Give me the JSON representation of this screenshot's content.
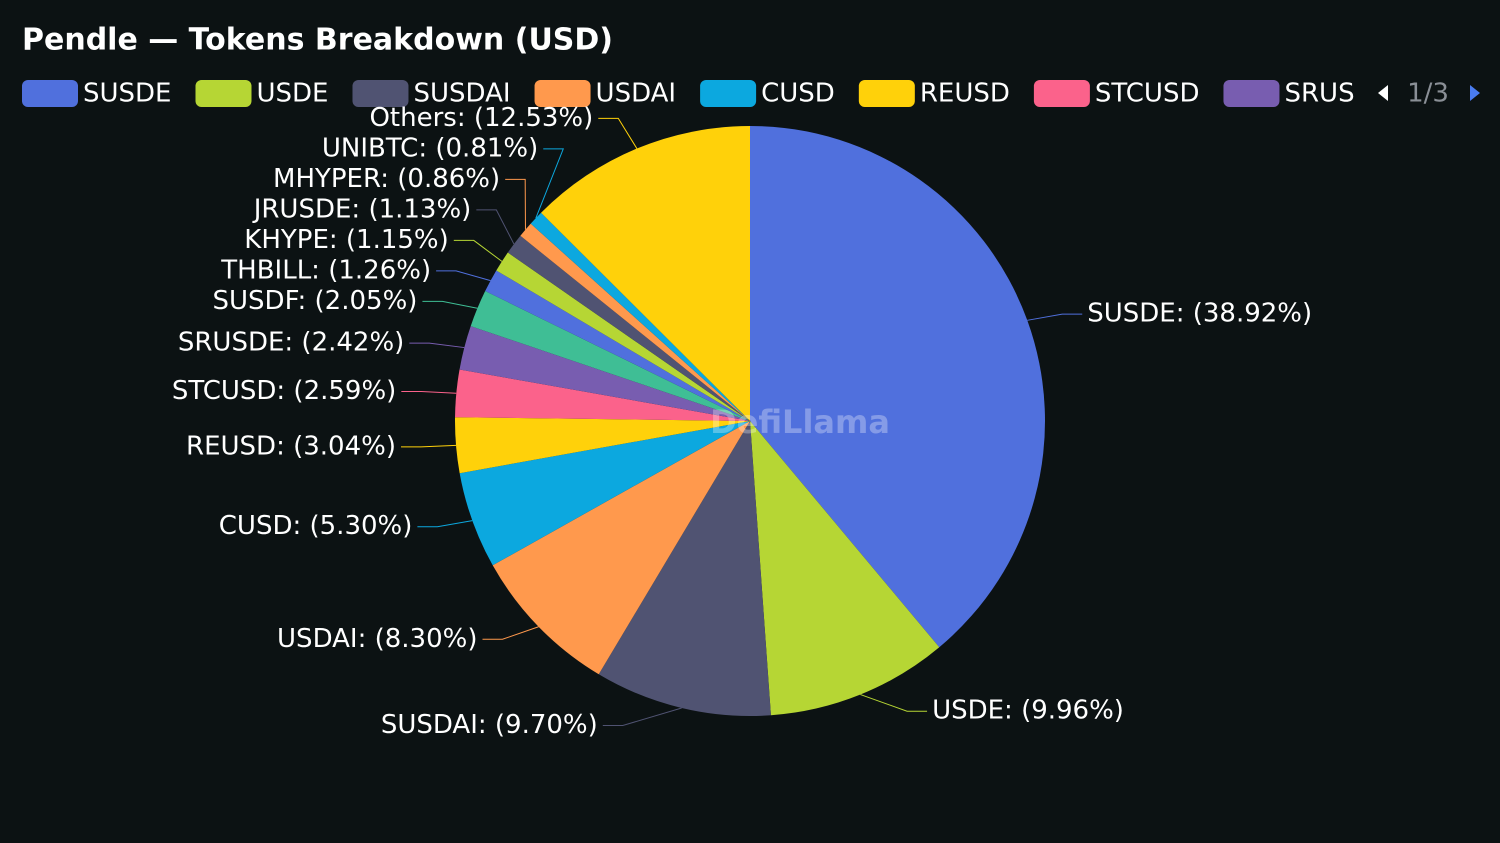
{
  "chart_data": {
    "type": "pie",
    "title": "Pendle — Tokens Breakdown (USD)",
    "categories": [
      "SUSDE",
      "USDE",
      "SUSDAI",
      "USDAI",
      "CUSD",
      "REUSD",
      "STCUSD",
      "SRUSDE",
      "SUSDF",
      "THBILL",
      "KHYPE",
      "JRUSDE",
      "MHYPER",
      "UNIBTC",
      "Others"
    ],
    "values": [
      38.92,
      9.96,
      9.7,
      8.3,
      5.3,
      3.04,
      2.59,
      2.42,
      2.05,
      1.26,
      1.15,
      1.13,
      0.86,
      0.81,
      12.53
    ],
    "value_labels": [
      "SUSDE: (38.92%)",
      "USDE: (9.96%)",
      "SUSDAI: (9.70%)",
      "USDAI: (8.30%)",
      "CUSD: (5.30%)",
      "REUSD: (3.04%)",
      "STCUSD: (2.59%)",
      "SRUSDE: (2.42%)",
      "SUSDF: (2.05%)",
      "THBILL: (1.26%)",
      "KHYPE: (1.15%)",
      "JRUSDE: (1.13%)",
      "MHYPER: (0.86%)",
      "UNIBTC: (0.81%)",
      "Others: (12.53%)"
    ],
    "colors": [
      "#5070dd",
      "#b6d634",
      "#505372",
      "#ff994d",
      "#0ca8df",
      "#ffd10a",
      "#fb628b",
      "#785db0",
      "#3fbe95",
      "#5070dd",
      "#b6d634",
      "#505372",
      "#ff994d",
      "#0ca8df",
      "#ffd10a"
    ],
    "legend_page": "1/3",
    "watermark": "DefiLlama"
  }
}
